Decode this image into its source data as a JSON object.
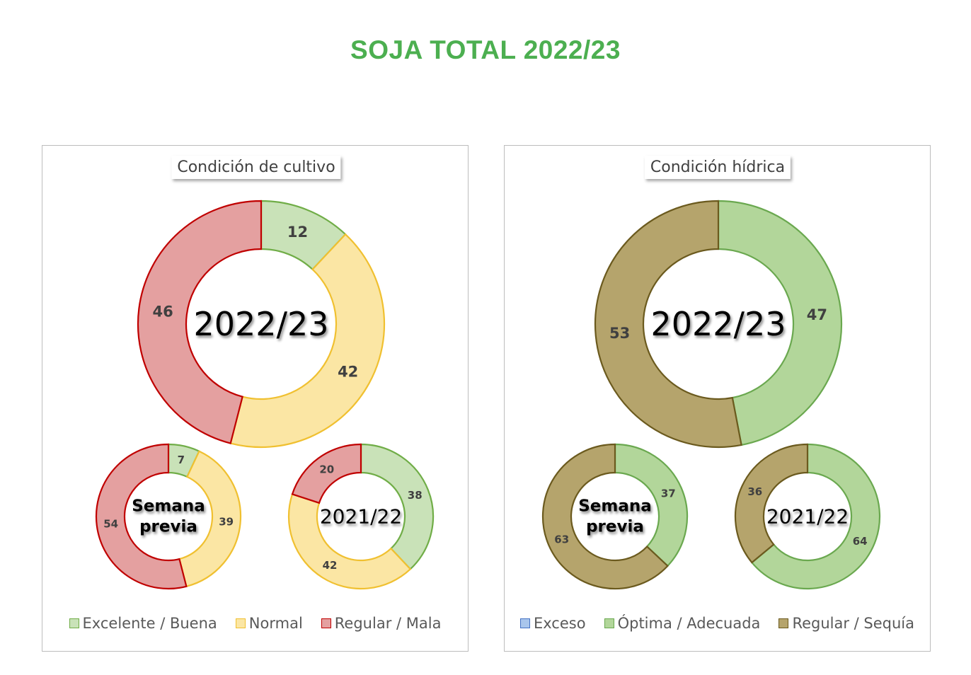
{
  "title": "SOJA TOTAL 2022/23",
  "colors": {
    "title": "#4caf50",
    "excelente_fill": "#c9e2b8",
    "excelente_stroke": "#70ad47",
    "normal_fill": "#fbe6a4",
    "normal_stroke": "#f0c030",
    "mala_fill": "#e4a0a0",
    "mala_stroke": "#c00000",
    "exceso_fill": "#a9c6ec",
    "exceso_stroke": "#4472c4",
    "optima_fill": "#b2d69a",
    "optima_stroke": "#6aa84f",
    "sequia_fill": "#b5a46c",
    "sequia_stroke": "#6b5a1e"
  },
  "chart_data": [
    {
      "type": "donut",
      "title": "Condición  de cultivo",
      "legend": [
        "Excelente / Buena",
        "Normal",
        "Regular / Mala"
      ],
      "rings": [
        {
          "center_label": [
            "2022/23"
          ],
          "values": [
            12,
            42,
            46
          ]
        },
        {
          "center_label": [
            "Semana",
            "previa"
          ],
          "values": [
            7,
            39,
            54
          ]
        },
        {
          "center_label": [
            "2021/22"
          ],
          "values": [
            38,
            42,
            20
          ]
        }
      ]
    },
    {
      "type": "donut",
      "title": "Condición  hídrica",
      "legend": [
        "Exceso",
        "Óptima / Adecuada",
        "Regular / Sequía"
      ],
      "rings": [
        {
          "center_label": [
            "2022/23"
          ],
          "values": [
            0,
            47,
            53
          ]
        },
        {
          "center_label": [
            "Semana",
            "previa"
          ],
          "values": [
            0,
            37,
            63
          ]
        },
        {
          "center_label": [
            "2021/22"
          ],
          "values": [
            0,
            64,
            36
          ]
        }
      ]
    }
  ]
}
